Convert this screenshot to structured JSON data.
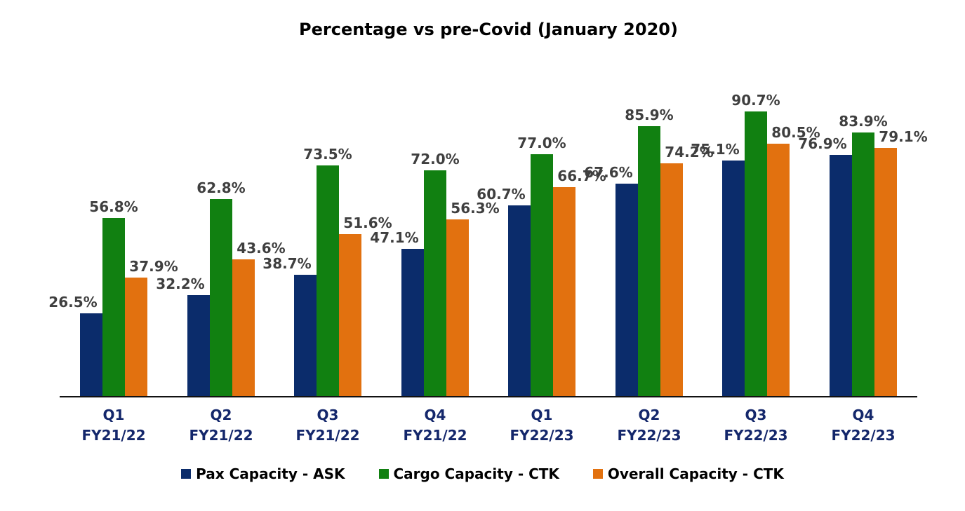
{
  "title": "Percentage vs pre-Covid (January 2020)",
  "chart_data": {
    "type": "bar",
    "title": "Percentage vs pre-Covid (January 2020)",
    "categories": [
      [
        "Q1",
        "FY21/22"
      ],
      [
        "Q2",
        "FY21/22"
      ],
      [
        "Q3",
        "FY21/22"
      ],
      [
        "Q4",
        "FY21/22"
      ],
      [
        "Q1",
        "FY22/23"
      ],
      [
        "Q2",
        "FY22/23"
      ],
      [
        "Q3",
        "FY22/23"
      ],
      [
        "Q4",
        "FY22/23"
      ]
    ],
    "series": [
      {
        "name": "Pax Capacity - ASK",
        "color": "#0b2c6b",
        "values": [
          26.5,
          32.2,
          38.7,
          47.1,
          60.7,
          67.6,
          75.1,
          76.9
        ],
        "labels": [
          "26.5%",
          "32.2%",
          "38.7%",
          "47.1%",
          "60.7%",
          "67.6%",
          "75.1%",
          "76.9%"
        ]
      },
      {
        "name": "Cargo Capacity - CTK",
        "color": "#118011",
        "values": [
          56.8,
          62.8,
          73.5,
          72.0,
          77.0,
          85.9,
          90.7,
          83.9
        ],
        "labels": [
          "56.8%",
          "62.8%",
          "73.5%",
          "72.0%",
          "77.0%",
          "85.9%",
          "90.7%",
          "83.9%"
        ]
      },
      {
        "name": "Overall Capacity - CTK",
        "color": "#e2710f",
        "values": [
          37.9,
          43.6,
          51.6,
          56.3,
          66.7,
          74.2,
          80.5,
          79.1
        ],
        "labels": [
          "37.9%",
          "43.6%",
          "51.6%",
          "56.3%",
          "66.7%",
          "74.2%",
          "80.5%",
          "79.1%"
        ]
      }
    ],
    "xlabel": "",
    "ylabel": "",
    "ylim": [
      0,
      100
    ],
    "value_suffix": "%",
    "grid": false,
    "y_axis_visible": false,
    "legend_position": "bottom",
    "data_label_color": "#3f3f3f",
    "tick_label_color": "#14276b",
    "axis_line_color": "#111111"
  }
}
